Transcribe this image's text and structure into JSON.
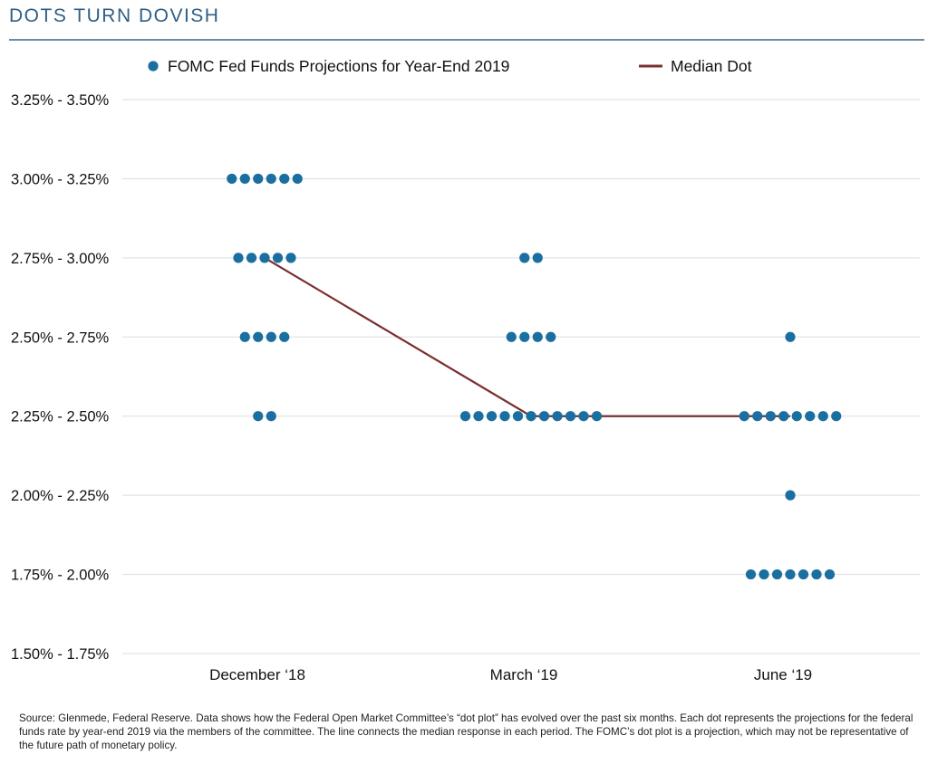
{
  "title": "DOTS TURN DOVISH",
  "colors": {
    "title": "#2f5f86",
    "dot": "#1a6fa0",
    "median": "#7a2f30",
    "grid": "#dddddd"
  },
  "source": "Source: Glenmede, Federal Reserve. Data shows how the Federal Open Market Committee’s “dot plot” has evolved over the past six months. Each dot represents the projections for the federal funds rate by year-end 2019 via the members of the committee. The line connects the median response in each period. The FOMC’s dot plot is a projection, which may not be representative of the future path of monetary policy.",
  "chart_data": {
    "type": "scatter",
    "categories": [
      "December ‘18",
      "March ‘19",
      "June ‘19"
    ],
    "y_ticks": [
      "1.50% - 1.75%",
      "1.75% - 2.00%",
      "2.00% - 2.25%",
      "2.25% - 2.50%",
      "2.50% - 2.75%",
      "2.75% - 3.00%",
      "3.00% - 3.25%",
      "3.25% - 3.50%"
    ],
    "legend": {
      "position": "top",
      "dots_label": "FOMC Fed Funds Projections for Year-End 2019",
      "median_label": "Median Dot"
    },
    "grid": true,
    "dot_counts": [
      {
        "2.25% - 2.50%": 2,
        "2.50% - 2.75%": 4,
        "2.75% - 3.00%": 5,
        "3.00% - 3.25%": 6
      },
      {
        "2.25% - 2.50%": 11,
        "2.50% - 2.75%": 4,
        "2.75% - 3.00%": 2
      },
      {
        "1.75% - 2.00%": 7,
        "2.00% - 2.25%": 1,
        "2.25% - 2.50%": 8,
        "2.50% - 2.75%": 1
      }
    ],
    "median": [
      "2.75% - 3.00%",
      "2.25% - 2.50%",
      "2.25% - 2.50%"
    ]
  }
}
